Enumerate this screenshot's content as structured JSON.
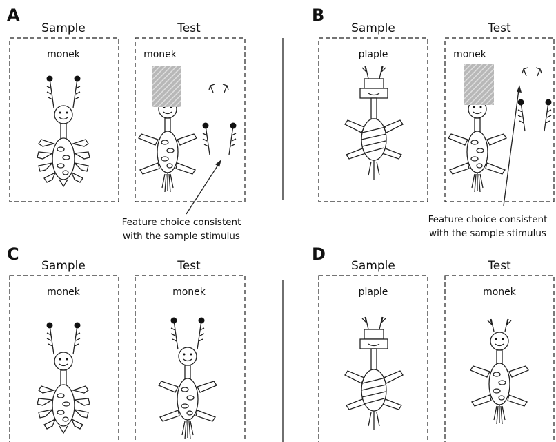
{
  "panels": [
    {
      "letter": "A",
      "sample": {
        "header": "Sample",
        "label": "monek"
      },
      "test": {
        "header": "Test",
        "label": "monek"
      },
      "annotation": [
        "Feature choice consistent",
        "with the sample stimulus"
      ]
    },
    {
      "letter": "B",
      "sample": {
        "header": "Sample",
        "label": "plaple"
      },
      "test": {
        "header": "Test",
        "label": "monek"
      },
      "annotation": [
        "Feature choice consistent",
        "with the sample stimulus"
      ]
    },
    {
      "letter": "C",
      "sample": {
        "header": "Sample",
        "label": "monek"
      },
      "test": {
        "header": "Test",
        "label": "monek"
      }
    },
    {
      "letter": "D",
      "sample": {
        "header": "Sample",
        "label": "plaple"
      },
      "test": {
        "header": "Test",
        "label": "monek"
      }
    }
  ]
}
